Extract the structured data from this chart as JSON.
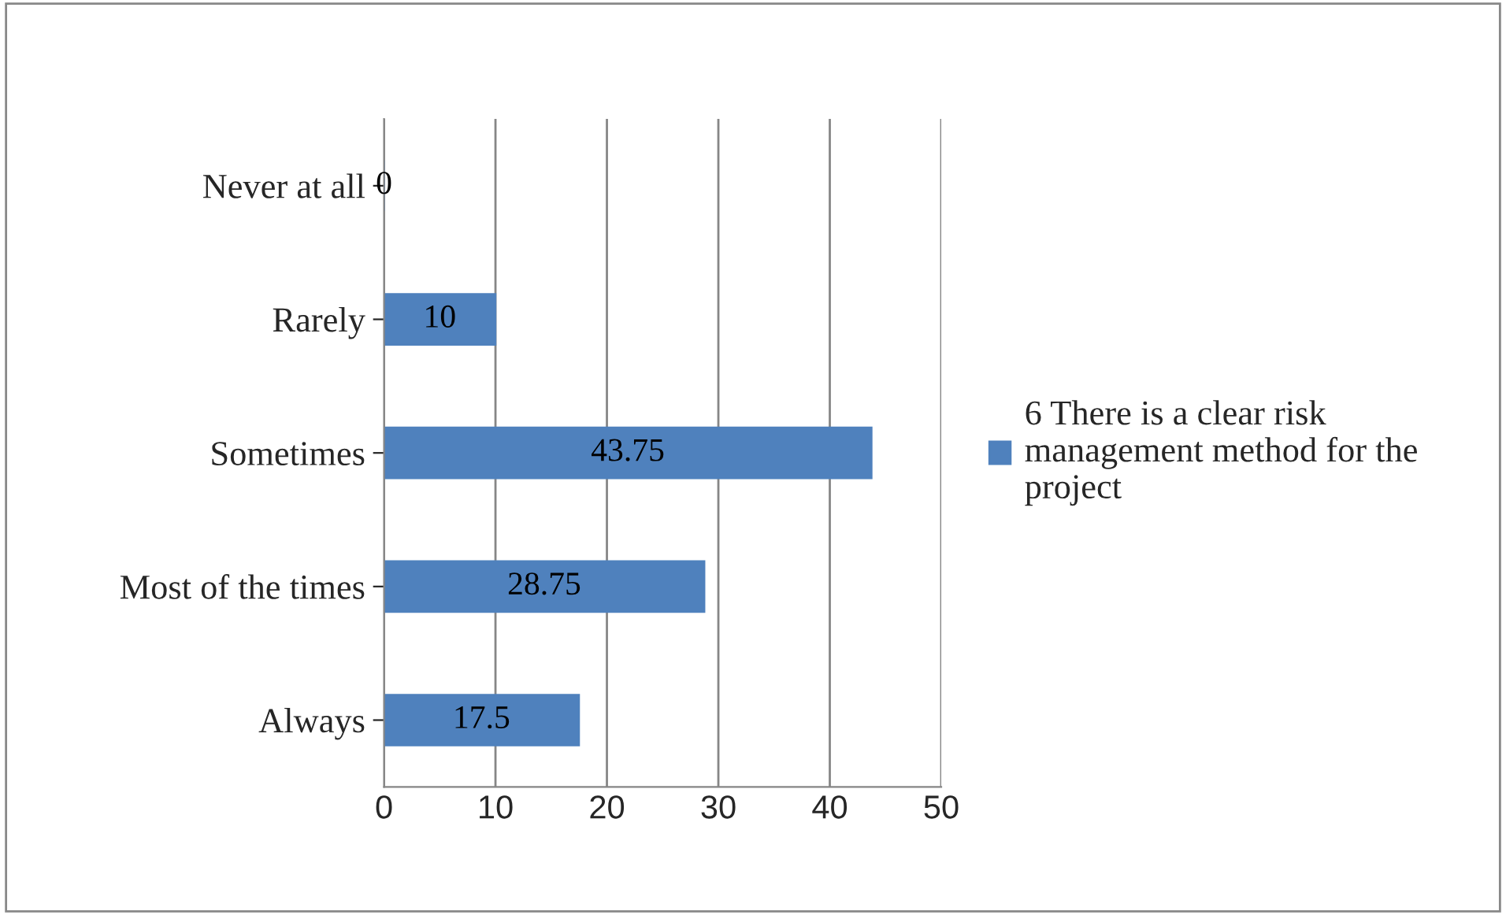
{
  "chart_data": {
    "type": "bar",
    "orientation": "horizontal",
    "categories": [
      "Never at all",
      "Rarely",
      "Sometimes",
      "Most of the times",
      "Always"
    ],
    "series": [
      {
        "name": "6 There is a clear risk management method for the project",
        "color": "#4f81bd",
        "values": [
          0,
          10,
          43.75,
          28.75,
          17.5
        ]
      }
    ],
    "xlim": [
      0,
      50
    ],
    "xticks": [
      0,
      10,
      20,
      30,
      40,
      50
    ],
    "grid": "x",
    "legend": "right",
    "data_labels": true
  }
}
